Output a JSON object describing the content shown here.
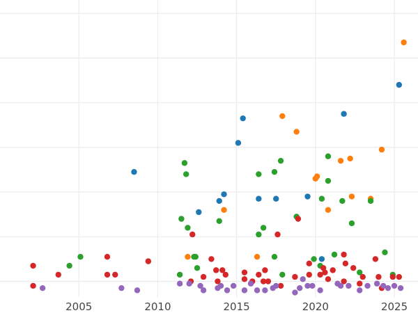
{
  "chart_data": {
    "type": "scatter",
    "title": "",
    "xlabel": "",
    "ylabel": "",
    "xlim": [
      2000,
      2026.5
    ],
    "ylim": [
      -0.3,
      6.35
    ],
    "x_ticks": [
      2005,
      2010,
      2015,
      2020,
      2025
    ],
    "x_tick_labels": [
      "2005",
      "2010",
      "2015",
      "2020",
      "2025"
    ],
    "y_gridlines": [
      0.05,
      1.05,
      2.05,
      3.05,
      4.05,
      5.05,
      6.05
    ],
    "grid": true,
    "legend": "none",
    "series": [
      {
        "color": "#1f77b4",
        "points": [
          [
            2008.5,
            2.5
          ],
          [
            2012.6,
            1.6
          ],
          [
            2013.9,
            1.85
          ],
          [
            2014.2,
            2.0
          ],
          [
            2015.1,
            3.15
          ],
          [
            2015.4,
            3.7
          ],
          [
            2016.4,
            1.9
          ],
          [
            2017.5,
            1.9
          ],
          [
            2019.5,
            1.95
          ],
          [
            2020.4,
            0.55
          ],
          [
            2021.8,
            3.8
          ],
          [
            2025.3,
            4.45
          ]
        ]
      },
      {
        "color": "#ff7f0e",
        "points": [
          [
            2011.9,
            0.6
          ],
          [
            2014.2,
            1.65
          ],
          [
            2016.3,
            0.6
          ],
          [
            2017.9,
            3.75
          ],
          [
            2018.8,
            3.4
          ],
          [
            2020.0,
            2.35
          ],
          [
            2020.1,
            2.4
          ],
          [
            2020.8,
            1.65
          ],
          [
            2021.6,
            2.75
          ],
          [
            2022.2,
            2.8
          ],
          [
            2022.3,
            1.95
          ],
          [
            2023.5,
            1.9
          ],
          [
            2024.2,
            3.0
          ],
          [
            2025.6,
            5.4
          ]
        ]
      },
      {
        "color": "#2ca02c",
        "points": [
          [
            2004.4,
            0.4
          ],
          [
            2005.1,
            0.6
          ],
          [
            2011.4,
            0.2
          ],
          [
            2011.5,
            1.45
          ],
          [
            2011.7,
            2.7
          ],
          [
            2011.8,
            2.45
          ],
          [
            2011.9,
            1.25
          ],
          [
            2012.3,
            0.6
          ],
          [
            2012.4,
            0.6
          ],
          [
            2012.5,
            0.35
          ],
          [
            2013.9,
            1.4
          ],
          [
            2016.4,
            1.1
          ],
          [
            2016.4,
            2.45
          ],
          [
            2016.7,
            1.25
          ],
          [
            2017.4,
            2.5
          ],
          [
            2017.4,
            0.6
          ],
          [
            2017.8,
            2.75
          ],
          [
            2017.9,
            0.2
          ],
          [
            2018.8,
            1.5
          ],
          [
            2019.9,
            0.55
          ],
          [
            2020.3,
            0.4
          ],
          [
            2020.4,
            1.9
          ],
          [
            2020.8,
            2.3
          ],
          [
            2020.8,
            2.85
          ],
          [
            2021.2,
            0.65
          ],
          [
            2021.7,
            1.85
          ],
          [
            2022.3,
            1.35
          ],
          [
            2022.8,
            0.25
          ],
          [
            2023.5,
            1.85
          ],
          [
            2024.4,
            0.7
          ],
          [
            2024.9,
            0.2
          ]
        ]
      },
      {
        "color": "#d62728",
        "points": [
          [
            2002.1,
            0.4
          ],
          [
            2002.1,
            -0.05
          ],
          [
            2003.7,
            0.2
          ],
          [
            2006.8,
            0.6
          ],
          [
            2006.8,
            0.2
          ],
          [
            2007.3,
            0.2
          ],
          [
            2009.4,
            0.5
          ],
          [
            2012.1,
            0.05
          ],
          [
            2012.2,
            1.1
          ],
          [
            2012.9,
            0.15
          ],
          [
            2013.4,
            0.55
          ],
          [
            2013.7,
            0.3
          ],
          [
            2013.8,
            0.05
          ],
          [
            2014.1,
            0.3
          ],
          [
            2014.3,
            0.2
          ],
          [
            2015.5,
            0.25
          ],
          [
            2015.5,
            0.1
          ],
          [
            2016.0,
            0.05
          ],
          [
            2016.4,
            0.2
          ],
          [
            2016.7,
            0.05
          ],
          [
            2016.8,
            0.3
          ],
          [
            2017.0,
            0.05
          ],
          [
            2017.6,
            1.1
          ],
          [
            2017.8,
            -0.05
          ],
          [
            2018.7,
            0.15
          ],
          [
            2018.9,
            1.45
          ],
          [
            2019.6,
            0.45
          ],
          [
            2019.6,
            0.2
          ],
          [
            2020.3,
            0.2
          ],
          [
            2020.5,
            0.35
          ],
          [
            2020.6,
            0.25
          ],
          [
            2020.8,
            0.1
          ],
          [
            2021.1,
            0.3
          ],
          [
            2021.8,
            0.05
          ],
          [
            2021.8,
            0.65
          ],
          [
            2021.9,
            0.45
          ],
          [
            2022.4,
            0.35
          ],
          [
            2022.8,
            0.0
          ],
          [
            2023.0,
            0.15
          ],
          [
            2023.8,
            0.55
          ],
          [
            2024.0,
            0.15
          ],
          [
            2024.2,
            -0.1
          ],
          [
            2024.9,
            0.15
          ],
          [
            2025.3,
            0.15
          ]
        ]
      },
      {
        "color": "#9467bd",
        "points": [
          [
            2002.7,
            -0.1
          ],
          [
            2007.7,
            -0.1
          ],
          [
            2008.7,
            -0.15
          ],
          [
            2011.4,
            0.0
          ],
          [
            2012.0,
            0.0
          ],
          [
            2012.7,
            -0.05
          ],
          [
            2012.9,
            -0.15
          ],
          [
            2013.8,
            -0.1
          ],
          [
            2014.0,
            -0.05
          ],
          [
            2014.4,
            -0.15
          ],
          [
            2014.8,
            -0.05
          ],
          [
            2015.5,
            -0.15
          ],
          [
            2015.9,
            0.0
          ],
          [
            2016.3,
            -0.15
          ],
          [
            2016.8,
            -0.15
          ],
          [
            2017.3,
            -0.1
          ],
          [
            2017.5,
            -0.05
          ],
          [
            2018.7,
            -0.2
          ],
          [
            2019.0,
            -0.1
          ],
          [
            2019.2,
            0.1
          ],
          [
            2019.5,
            -0.05
          ],
          [
            2019.8,
            -0.05
          ],
          [
            2020.3,
            -0.15
          ],
          [
            2021.4,
            0.0
          ],
          [
            2021.6,
            -0.05
          ],
          [
            2022.1,
            -0.05
          ],
          [
            2022.8,
            -0.15
          ],
          [
            2023.3,
            -0.05
          ],
          [
            2023.9,
            0.0
          ],
          [
            2024.3,
            -0.05
          ],
          [
            2024.6,
            -0.1
          ],
          [
            2025.0,
            -0.05
          ],
          [
            2025.4,
            -0.1
          ]
        ]
      }
    ]
  }
}
